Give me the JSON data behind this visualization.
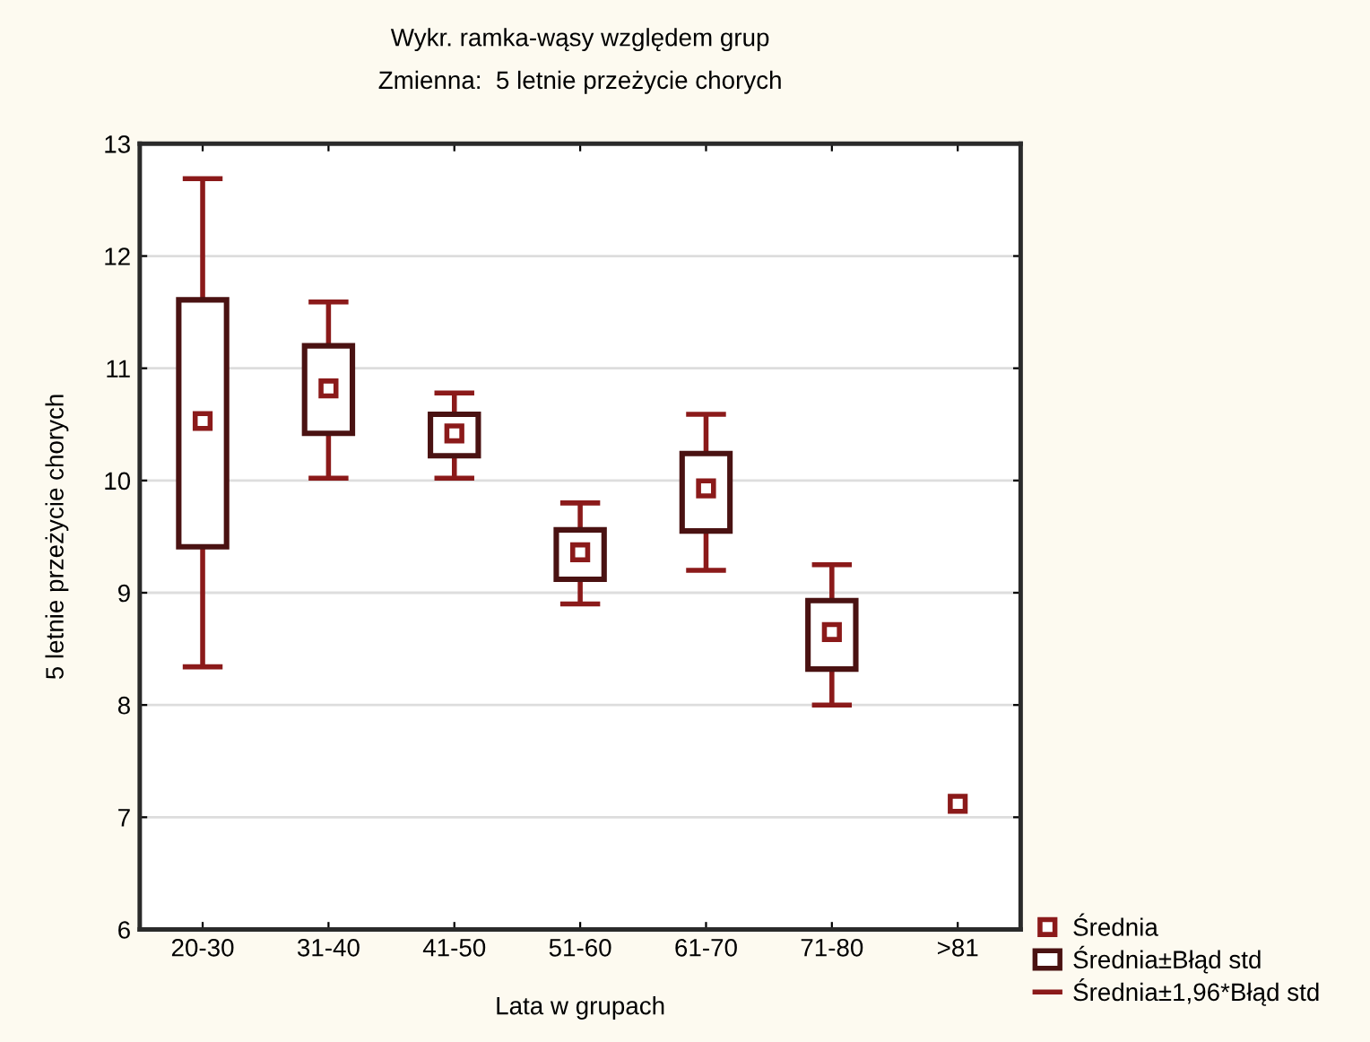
{
  "chart_data": {
    "type": "scatter",
    "annotations": [
      "Średnia±1,96*Błąd std"
    ],
    "title": "Wykr. ramka-wąsy względem grup",
    "subtitle": "Zmienna:  5 letnie przeżycie chorych",
    "xlabel": "Lata w grupach",
    "ylabel": "5 letnie przeżycie chorych",
    "categories": [
      "20-30",
      "31-40",
      "41-50",
      "51-60",
      "61-70",
      "71-80",
      ">81"
    ],
    "series": [
      {
        "name": "Średnia",
        "marker": "square",
        "color": "#8b1a1a",
        "values": [
          10.53,
          10.82,
          10.42,
          9.36,
          9.93,
          8.65,
          7.12
        ],
        "errors": [
          [
            8.34,
            12.69
          ],
          [
            10.02,
            11.59
          ],
          [
            10.02,
            10.78
          ],
          [
            8.9,
            9.8
          ],
          [
            9.2,
            10.59
          ],
          [
            8.0,
            9.25
          ],
          null
        ]
      },
      {
        "name": "Średnia±Błąd std",
        "type": "bar",
        "color": "#4a1212",
        "base": [
          9.41,
          10.42,
          10.22,
          9.12,
          9.55,
          8.32,
          null
        ],
        "values": [
          2.2,
          0.78,
          0.37,
          0.44,
          0.69,
          0.61,
          null
        ]
      }
    ],
    "ylim": [
      6,
      13
    ],
    "yticks": [
      6,
      7,
      8,
      9,
      10,
      11,
      12,
      13
    ],
    "grid": "y",
    "legend": "bottom right"
  }
}
